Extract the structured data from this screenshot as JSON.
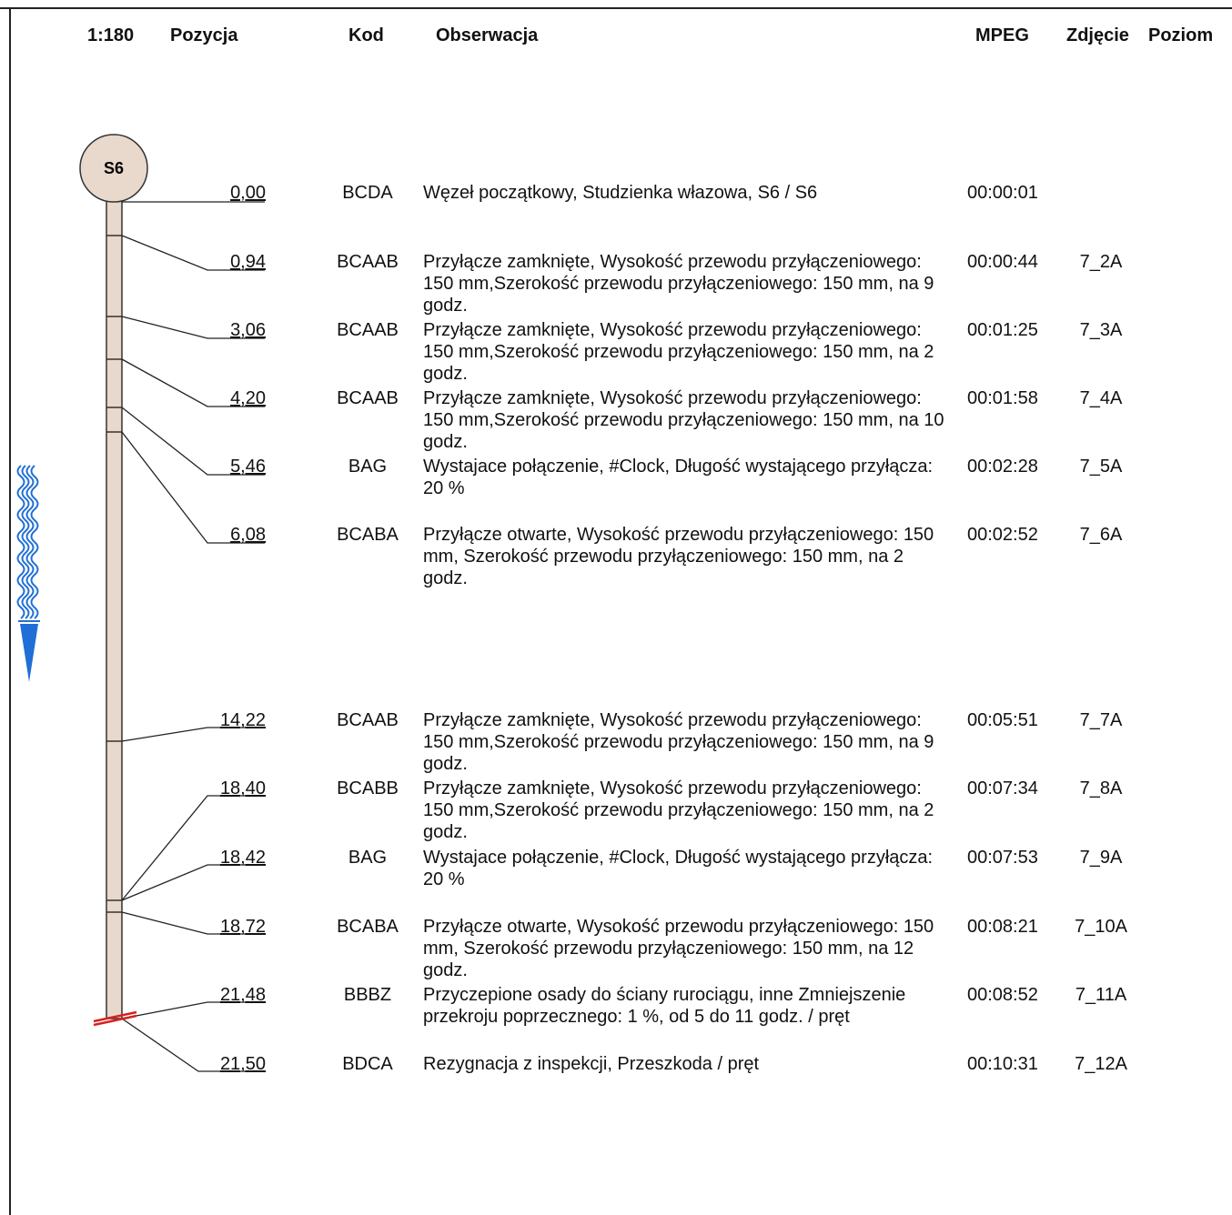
{
  "header": {
    "scale": "1:180",
    "pozycja": "Pozycja",
    "kod": "Kod",
    "obserwacja": "Obserwacja",
    "mpeg": "MPEG",
    "zdjecie": "Zdjęcie",
    "poziom": "Poziom"
  },
  "node": {
    "label": "S6"
  },
  "colors": {
    "pipe_fill": "#e8d9cc",
    "flow_arrow": "#1f6fd6",
    "end_mark": "#d62020"
  },
  "rows": [
    {
      "position": "0,00",
      "code": "BCDA",
      "observation": "Węzeł początkowy, Studzienka właz­owa, S6 / S6",
      "mpeg": "00:00:01",
      "photo": ""
    },
    {
      "position": "0,94",
      "code": "BCAAB",
      "observation": "Przyłącze zamknięte, Wysokość przewodu przyłączeniowego: 150 mm,Szerokość przewodu przyłączeniowego: 150 mm, na 9 godz.",
      "mpeg": "00:00:44",
      "photo": "7_2A"
    },
    {
      "position": "3,06",
      "code": "BCAAB",
      "observation": "Przyłącze zamknięte, Wysokość przewodu przyłączeniowego: 150 mm,Szerokość przewodu przyłączeniowego: 150 mm, na 2 godz.",
      "mpeg": "00:01:25",
      "photo": "7_3A"
    },
    {
      "position": "4,20",
      "code": "BCAAB",
      "observation": "Przyłącze zamknięte, Wysokość przewodu przyłączeniowego: 150 mm,Szerokość przewodu przyłączeniowego: 150 mm, na 10 godz.",
      "mpeg": "00:01:58",
      "photo": "7_4A"
    },
    {
      "position": "5,46",
      "code": "BAG",
      "observation": "Wystajace połączenie, #Clock, Długość wystającego przyłącza: 20 %",
      "mpeg": "00:02:28",
      "photo": "7_5A"
    },
    {
      "position": "6,08",
      "code": "BCABA",
      "observation": "Przyłącze otwarte, Wysokość przewodu przyłączeniowego: 150 mm,  Szerokość przewodu przyłączeniowego: 150 mm, na 2 godz.",
      "mpeg": "00:02:52",
      "photo": "7_6A"
    },
    {
      "position": "14,22",
      "code": "BCAAB",
      "observation": "Przyłącze zamknięte, Wysokość przewodu przyłączeniowego: 150 mm,Szerokość przewodu przyłączeniowego: 150 mm, na 9 godz.",
      "mpeg": "00:05:51",
      "photo": "7_7A"
    },
    {
      "position": "18,40",
      "code": "BCABB",
      "observation": "Przyłącze zamknięte, Wysokość przewodu przyłączeniowego: 150 mm,Szerokość przewodu przyłączeniowego: 150 mm, na 2 godz.",
      "mpeg": "00:07:34",
      "photo": "7_8A"
    },
    {
      "position": "18,42",
      "code": "BAG",
      "observation": "Wystajace połączenie, #Clock, Długość wystającego przyłącza: 20 %",
      "mpeg": "00:07:53",
      "photo": "7_9A"
    },
    {
      "position": "18,72",
      "code": "BCABA",
      "observation": "Przyłącze otwarte, Wysokość przewodu przyłączeniowego: 150 mm,  Szerokość przewodu przyłączeniowego: 150 mm, na 12 godz.",
      "mpeg": "00:08:21",
      "photo": "7_10A"
    },
    {
      "position": "21,48",
      "code": "BBBZ",
      "observation": "Przyczepione osady do ściany rurociągu, inne Zmniejszenie przekroju poprzecznego: 1 %, od 5 do 11 godz. / pręt",
      "mpeg": "00:08:52",
      "photo": "7_11A"
    },
    {
      "position": "21,50",
      "code": "BDCA",
      "observation": "Rezygnacja z inspekcji, Przeszkoda / pręt",
      "mpeg": "00:10:31",
      "photo": "7_12A"
    }
  ]
}
